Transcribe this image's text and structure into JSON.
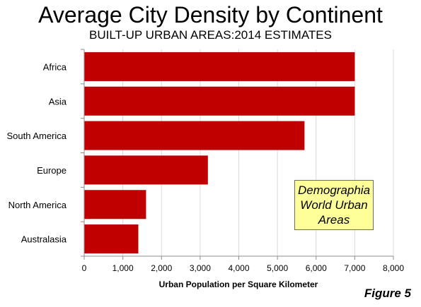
{
  "chart_data": {
    "type": "bar",
    "orientation": "horizontal",
    "title": "Average City Density by Continent",
    "subtitle": "BUILT-UP URBAN AREAS:2014 ESTIMATES",
    "categories": [
      "Africa",
      "Asia",
      "South America",
      "Europe",
      "North America",
      "Australasia"
    ],
    "values": [
      7000,
      7000,
      5700,
      3200,
      1600,
      1400
    ],
    "xlabel": "Urban Population per Square Kilometer",
    "ylabel": "",
    "xlim": [
      0,
      8000
    ],
    "x_ticks": [
      "0",
      "1,000",
      "2,000",
      "3,000",
      "4,000",
      "5,000",
      "6,000",
      "7,000",
      "8,000"
    ],
    "grid": true,
    "legend": "none",
    "bar_color": "#c00000"
  },
  "annotation": {
    "lines": [
      "Demographia",
      "World Urban",
      "Areas"
    ],
    "background": "#ffff99"
  },
  "figure_label": "Figure 5"
}
